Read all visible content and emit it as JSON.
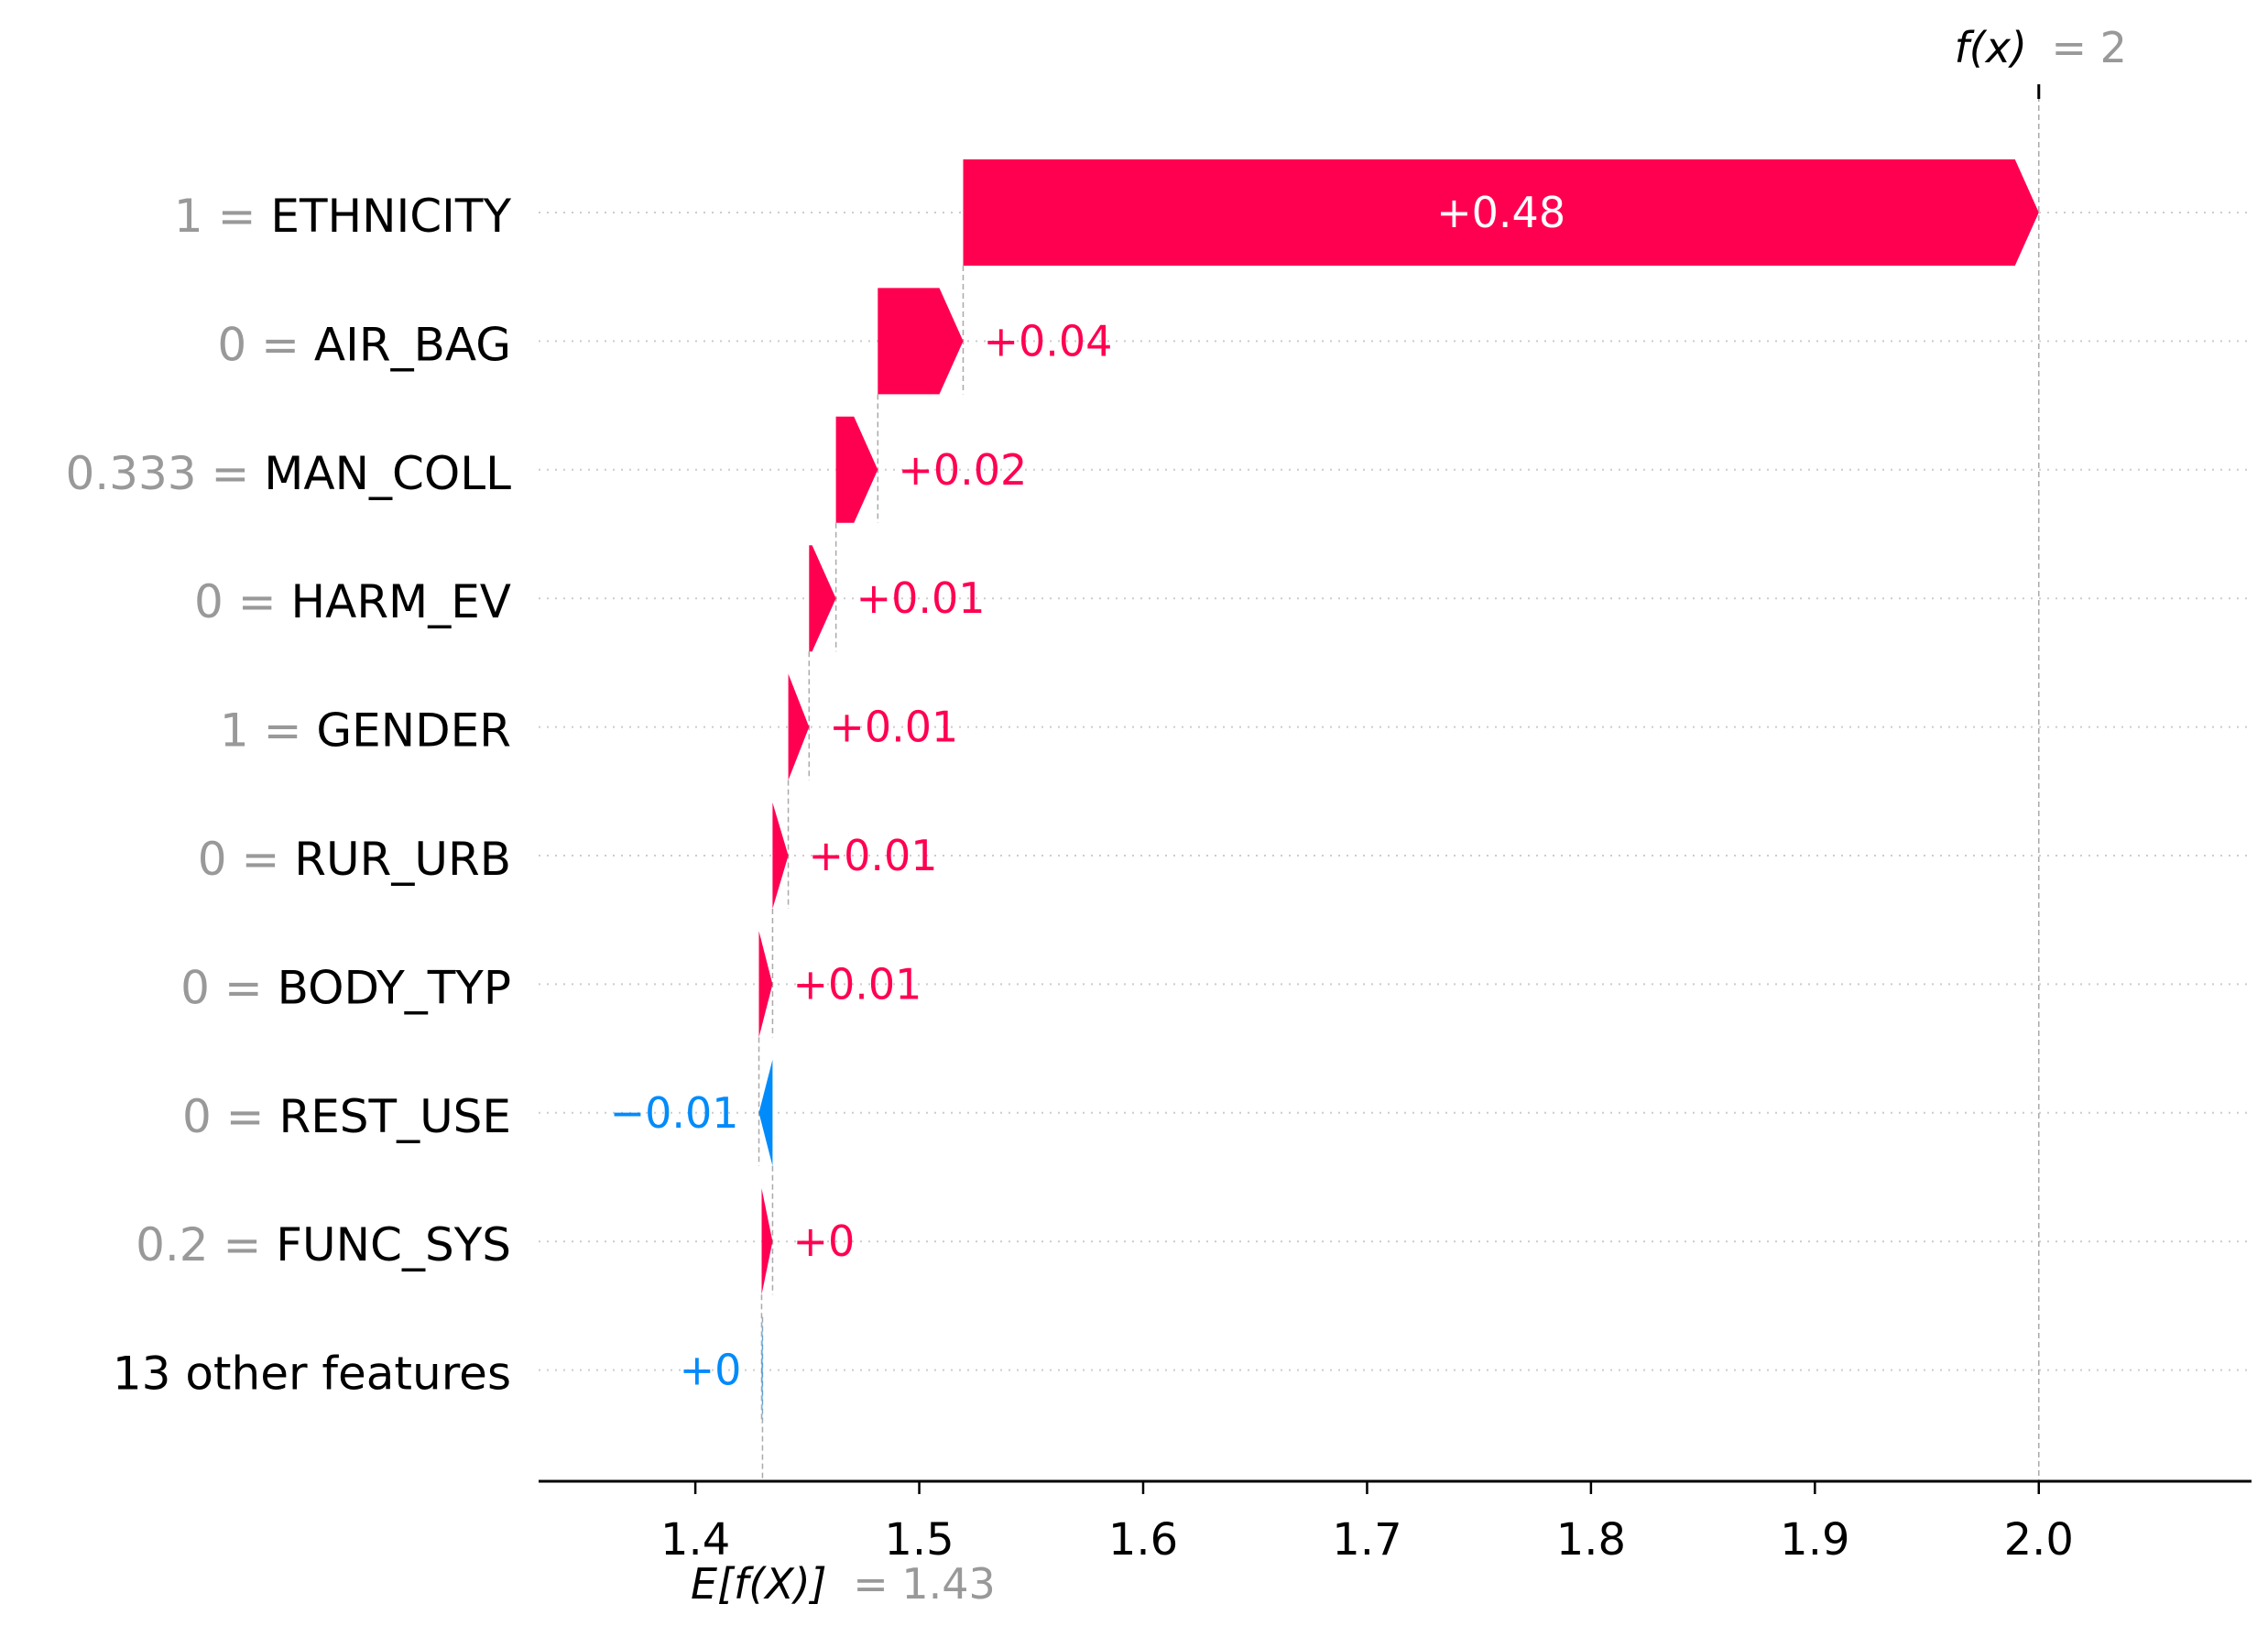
{
  "chart_data": {
    "type": "waterfall",
    "base_value": 1.43,
    "final_value": 2,
    "base_label_prefix": "E[f(X)]",
    "base_label_suffix": "= 1.43",
    "final_label_prefix": "f(x)",
    "final_label_suffix": "= 2",
    "xlim": [
      1.33,
      2.095
    ],
    "xticks": [
      1.4,
      1.5,
      1.6,
      1.7,
      1.8,
      1.9,
      2.0
    ],
    "xtick_labels": [
      "1.4",
      "1.5",
      "1.6",
      "1.7",
      "1.8",
      "1.9",
      "2.0"
    ],
    "features": [
      {
        "value": "1 =",
        "name": "ETHNICITY",
        "label": "+0.48",
        "start": 1.5196,
        "end": 2.0
      },
      {
        "value": "0 =",
        "name": "AIR_BAG",
        "label": "+0.04",
        "start": 1.4815,
        "end": 1.5196
      },
      {
        "value": "0.333 =",
        "name": "MAN_COLL",
        "label": "+0.02",
        "start": 1.4628,
        "end": 1.4815
      },
      {
        "value": "0 =",
        "name": "HARM_EV",
        "label": "+0.01",
        "start": 1.4508,
        "end": 1.4628
      },
      {
        "value": "1 =",
        "name": "GENDER",
        "label": "+0.01",
        "start": 1.4415,
        "end": 1.4508
      },
      {
        "value": "0 =",
        "name": "RUR_URB",
        "label": "+0.01",
        "start": 1.4345,
        "end": 1.4415
      },
      {
        "value": "0 =",
        "name": "BODY_TYP",
        "label": "+0.01",
        "start": 1.4284,
        "end": 1.4345
      },
      {
        "value": "0 =",
        "name": "REST_USE",
        "label": "−0.01",
        "start": 1.4345,
        "end": 1.4284
      },
      {
        "value": "0.2 =",
        "name": "FUNC_SYS",
        "label": "+0",
        "start": 1.4296,
        "end": 1.4345
      },
      {
        "value": "",
        "name": "13 other features",
        "label": "+0",
        "start": 1.43,
        "end": 1.4296
      }
    ],
    "colors": {
      "positive": "#ff0051",
      "negative": "#008bfb",
      "grid": "#cccccc",
      "guide": "#aaaaaa"
    }
  }
}
